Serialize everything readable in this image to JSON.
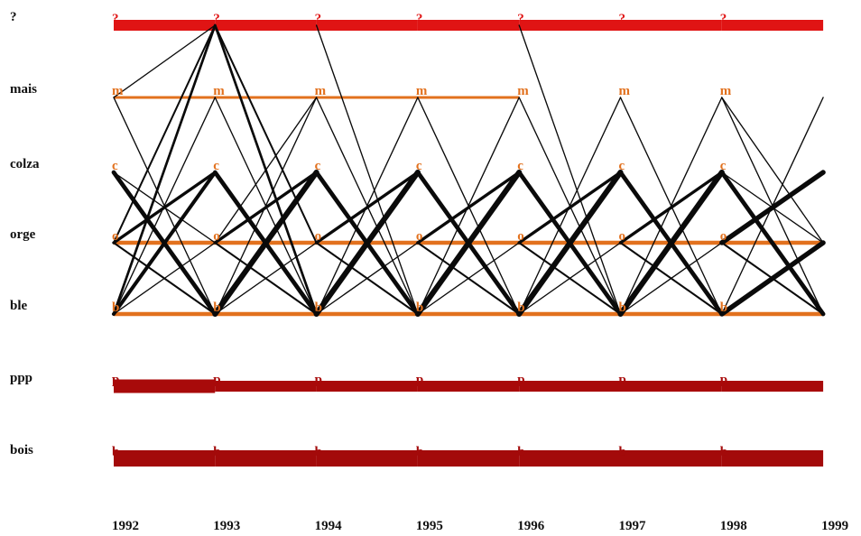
{
  "chart_data": {
    "type": "transition-diagram",
    "title": "",
    "years": [
      "1992",
      "1993",
      "1994",
      "1995",
      "1996",
      "1997",
      "1998",
      "1999"
    ],
    "categories": [
      {
        "id": "q",
        "label": "?",
        "letter": "?",
        "color": "#e01414"
      },
      {
        "id": "mais",
        "label": "mais",
        "letter": "m",
        "color": "#e2711e"
      },
      {
        "id": "colza",
        "label": "colza",
        "letter": "c",
        "color": "#e2711e"
      },
      {
        "id": "orge",
        "label": "orge",
        "letter": "o",
        "color": "#e2711e"
      },
      {
        "id": "ble",
        "label": "ble",
        "letter": "b",
        "color": "#e2711e"
      },
      {
        "id": "ppp",
        "label": "ppp",
        "letter": "p",
        "color": "#a80a0a"
      },
      {
        "id": "bois",
        "label": "bois",
        "letter": "b",
        "color": "#a30a0a"
      }
    ],
    "stays": [
      {
        "category": "q",
        "values": [
          4,
          4,
          4,
          4,
          4,
          4,
          4
        ],
        "color": "#e01414"
      },
      {
        "category": "mais",
        "values": [
          1,
          1,
          1,
          1,
          0,
          0,
          0
        ],
        "color": "#e2711e"
      },
      {
        "category": "orge",
        "values": [
          1.5,
          1.5,
          1.5,
          1.5,
          1.5,
          1.5,
          1.5
        ],
        "color": "#e2711e"
      },
      {
        "category": "ble",
        "values": [
          1.5,
          1.5,
          1.5,
          1.5,
          1.5,
          1.5,
          1.5
        ],
        "color": "#e2711e"
      },
      {
        "category": "ppp",
        "values": [
          5,
          4,
          4,
          4,
          4,
          4,
          4
        ],
        "color": "#a80a0a"
      },
      {
        "category": "bois",
        "values": [
          6,
          6,
          6,
          6,
          6,
          6,
          6
        ],
        "color": "#a30a0a"
      }
    ],
    "transitions": [
      {
        "year": 0,
        "from": "mais",
        "to": "q",
        "weight": 1
      },
      {
        "year": 0,
        "from": "orge",
        "to": "q",
        "weight": 1.5
      },
      {
        "year": 0,
        "from": "ble",
        "to": "q",
        "weight": 2
      },
      {
        "year": 0,
        "from": "mais",
        "to": "ble",
        "weight": 1
      },
      {
        "year": 0,
        "from": "colza",
        "to": "ble",
        "weight": 3.5
      },
      {
        "year": 0,
        "from": "colza",
        "to": "orge",
        "weight": 1
      },
      {
        "year": 0,
        "from": "orge",
        "to": "colza",
        "weight": 2.5
      },
      {
        "year": 0,
        "from": "ble",
        "to": "colza",
        "weight": 3
      },
      {
        "year": 0,
        "from": "ble",
        "to": "orge",
        "weight": 1
      },
      {
        "year": 0,
        "from": "ble",
        "to": "mais",
        "weight": 1
      },
      {
        "year": 0,
        "from": "orge",
        "to": "ble",
        "weight": 1.5
      },
      {
        "year": 1,
        "from": "q",
        "to": "orge",
        "weight": 1.5
      },
      {
        "year": 1,
        "from": "q",
        "to": "ble",
        "weight": 2
      },
      {
        "year": 1,
        "from": "mais",
        "to": "ble",
        "weight": 1
      },
      {
        "year": 1,
        "from": "colza",
        "to": "ble",
        "weight": 3.5
      },
      {
        "year": 1,
        "from": "orge",
        "to": "colza",
        "weight": 2.5
      },
      {
        "year": 1,
        "from": "ble",
        "to": "colza",
        "weight": 4.5
      },
      {
        "year": 1,
        "from": "ble",
        "to": "orge",
        "weight": 1
      },
      {
        "year": 1,
        "from": "ble",
        "to": "mais",
        "weight": 1
      },
      {
        "year": 1,
        "from": "orge",
        "to": "mais",
        "weight": 1
      },
      {
        "year": 1,
        "from": "orge",
        "to": "ble",
        "weight": 1.5
      },
      {
        "year": 2,
        "from": "q",
        "to": "ble",
        "weight": 1
      },
      {
        "year": 2,
        "from": "mais",
        "to": "ble",
        "weight": 1
      },
      {
        "year": 2,
        "from": "colza",
        "to": "ble",
        "weight": 3.5
      },
      {
        "year": 2,
        "from": "orge",
        "to": "colza",
        "weight": 2.5
      },
      {
        "year": 2,
        "from": "ble",
        "to": "colza",
        "weight": 4.5
      },
      {
        "year": 2,
        "from": "ble",
        "to": "orge",
        "weight": 1
      },
      {
        "year": 2,
        "from": "ble",
        "to": "mais",
        "weight": 1
      },
      {
        "year": 2,
        "from": "orge",
        "to": "ble",
        "weight": 1.5
      },
      {
        "year": 3,
        "from": "mais",
        "to": "ble",
        "weight": 1
      },
      {
        "year": 3,
        "from": "colza",
        "to": "ble",
        "weight": 3.5
      },
      {
        "year": 3,
        "from": "orge",
        "to": "colza",
        "weight": 2.5
      },
      {
        "year": 3,
        "from": "ble",
        "to": "colza",
        "weight": 4.5
      },
      {
        "year": 3,
        "from": "ble",
        "to": "orge",
        "weight": 1
      },
      {
        "year": 3,
        "from": "ble",
        "to": "mais",
        "weight": 1
      },
      {
        "year": 3,
        "from": "orge",
        "to": "ble",
        "weight": 1.5
      },
      {
        "year": 4,
        "from": "q",
        "to": "ble",
        "weight": 1
      },
      {
        "year": 4,
        "from": "mais",
        "to": "ble",
        "weight": 1
      },
      {
        "year": 4,
        "from": "colza",
        "to": "ble",
        "weight": 3.5
      },
      {
        "year": 4,
        "from": "orge",
        "to": "colza",
        "weight": 2.5
      },
      {
        "year": 4,
        "from": "ble",
        "to": "colza",
        "weight": 4.5
      },
      {
        "year": 4,
        "from": "ble",
        "to": "orge",
        "weight": 1
      },
      {
        "year": 4,
        "from": "ble",
        "to": "mais",
        "weight": 1
      },
      {
        "year": 4,
        "from": "orge",
        "to": "ble",
        "weight": 1.5
      },
      {
        "year": 5,
        "from": "mais",
        "to": "ble",
        "weight": 1
      },
      {
        "year": 5,
        "from": "colza",
        "to": "ble",
        "weight": 3.5
      },
      {
        "year": 5,
        "from": "orge",
        "to": "colza",
        "weight": 2.5
      },
      {
        "year": 5,
        "from": "ble",
        "to": "colza",
        "weight": 4.5
      },
      {
        "year": 5,
        "from": "ble",
        "to": "orge",
        "weight": 1
      },
      {
        "year": 5,
        "from": "ble",
        "to": "mais",
        "weight": 1
      },
      {
        "year": 5,
        "from": "orge",
        "to": "ble",
        "weight": 1.5
      },
      {
        "year": 6,
        "from": "mais",
        "to": "ble",
        "weight": 1
      },
      {
        "year": 6,
        "from": "mais",
        "to": "orge",
        "weight": 1
      },
      {
        "year": 6,
        "from": "colza",
        "to": "ble",
        "weight": 3.5
      },
      {
        "year": 6,
        "from": "colza",
        "to": "orge",
        "weight": 1
      },
      {
        "year": 6,
        "from": "orge",
        "to": "colza",
        "weight": 4
      },
      {
        "year": 6,
        "from": "ble",
        "to": "orge",
        "weight": 4
      },
      {
        "year": 6,
        "from": "ble",
        "to": "mais",
        "weight": 1
      },
      {
        "year": 6,
        "from": "orge",
        "to": "ble",
        "weight": 1.5
      }
    ]
  }
}
